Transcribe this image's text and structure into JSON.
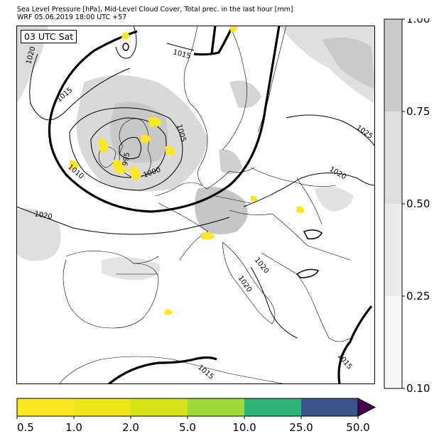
{
  "title_line1": "Sea Level Pressure [hPa], Mid-Level Cloud Cover, Total prec. in the last hour [mm]",
  "title_line2": "WRF 05.06.2019 18:00 UTC +57",
  "time_label": "03 UTC Sat",
  "isobar_labels": [
    {
      "id": "iso-1015-north",
      "text": "1015"
    },
    {
      "id": "iso-1020-nw",
      "text": "1020"
    },
    {
      "id": "iso-1015-west",
      "text": "1015"
    },
    {
      "id": "iso-1005",
      "text": "1005"
    },
    {
      "id": "iso-1010",
      "text": "1010"
    },
    {
      "id": "iso-1000",
      "text": "1000"
    },
    {
      "id": "iso-995",
      "text": "995"
    },
    {
      "id": "iso-1020-sw",
      "text": "1020"
    },
    {
      "id": "iso-1025-ne",
      "text": "1025"
    },
    {
      "id": "iso-1020-east",
      "text": "1020"
    },
    {
      "id": "iso-1020-adriatic",
      "text": "1020"
    },
    {
      "id": "iso-1020-italy",
      "text": "1020"
    },
    {
      "id": "iso-1015-south",
      "text": "1015"
    },
    {
      "id": "iso-1015-se",
      "text": "1015"
    }
  ],
  "cloud_legend": {
    "ticks": [
      "0.10",
      "0.25",
      "0.50",
      "0.75",
      "1.00"
    ],
    "colors": [
      "#f7f7f7",
      "#ebebeb",
      "#dedede",
      "#cccccc"
    ]
  },
  "precip_legend": {
    "ticks": [
      "0.5",
      "1.0",
      "2.0",
      "5.0",
      "10.0",
      "25.0",
      "50.0"
    ],
    "colors": [
      "#fde725",
      "#eee51b",
      "#d8e219",
      "#a0da39",
      "#2fb47c",
      "#3b528b",
      "#440154"
    ]
  }
}
